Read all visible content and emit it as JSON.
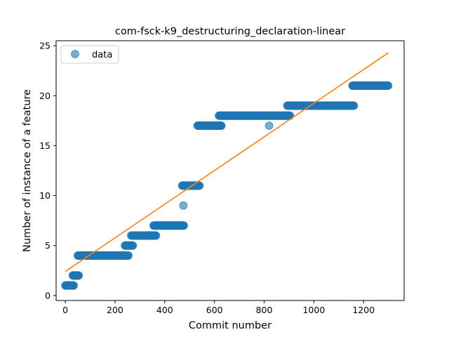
{
  "chart_data": {
    "type": "scatter",
    "title": "com-fsck-k9_destructuring_declaration-linear",
    "xlabel": "Commit number",
    "ylabel": "Number of instance of a feature",
    "xlim": [
      -37,
      1363
    ],
    "ylim": [
      -0.5,
      25.5
    ],
    "xticks": [
      0,
      200,
      400,
      600,
      800,
      1000,
      1200
    ],
    "yticks": [
      0,
      5,
      10,
      15,
      20,
      25
    ],
    "grid": false,
    "legend": {
      "position": "upper left",
      "entries": [
        "data"
      ]
    },
    "colors": {
      "data": "#1f77b4",
      "fit": "#ff7f0e"
    },
    "series": [
      {
        "name": "data",
        "kind": "scatter",
        "runs": [
          {
            "x_start": 0,
            "x_end": 35,
            "y": 1
          },
          {
            "x_start": 30,
            "x_end": 55,
            "y": 2
          },
          {
            "x_start": 50,
            "x_end": 255,
            "y": 4
          },
          {
            "x_start": 240,
            "x_end": 272,
            "y": 5
          },
          {
            "x_start": 265,
            "x_end": 365,
            "y": 6
          },
          {
            "x_start": 355,
            "x_end": 478,
            "y": 7
          },
          {
            "x_start": 470,
            "x_end": 540,
            "y": 11
          },
          {
            "x_start": 532,
            "x_end": 628,
            "y": 17
          },
          {
            "x_start": 618,
            "x_end": 905,
            "y": 18
          },
          {
            "x_start": 893,
            "x_end": 1162,
            "y": 19
          },
          {
            "x_start": 1155,
            "x_end": 1300,
            "y": 21
          }
        ],
        "outliers": [
          {
            "x": 475,
            "y": 9
          },
          {
            "x": 820,
            "y": 17
          }
        ]
      },
      {
        "kind": "line",
        "points": [
          {
            "x": 0,
            "y": 2.4
          },
          {
            "x": 1300,
            "y": 24.3
          }
        ]
      }
    ]
  }
}
